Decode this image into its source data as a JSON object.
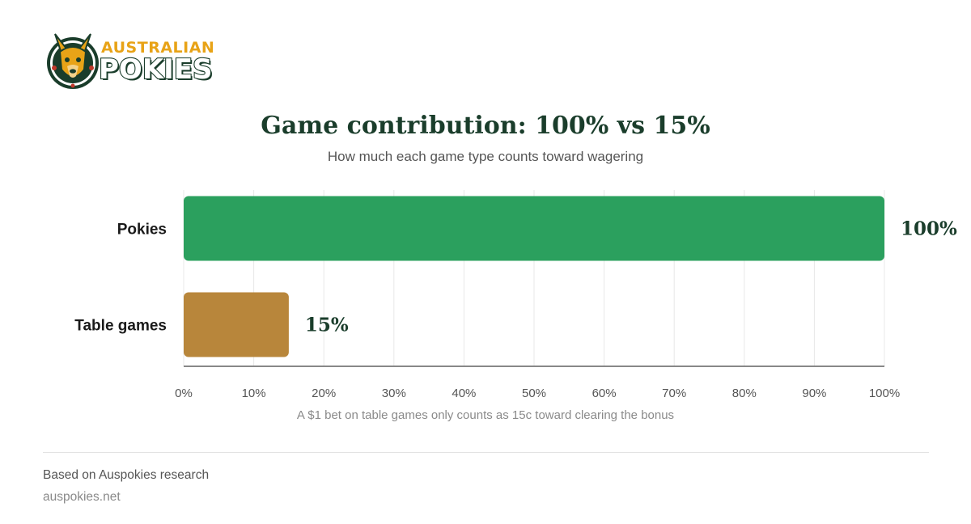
{
  "brand": {
    "name_top": "AUSTRALIAN",
    "name_bottom": "POKIES",
    "logo_icon": "kangaroo-head-icon",
    "colors": {
      "gold": "#e8a317",
      "dark_green": "#1a3d2b",
      "red": "#c0392b"
    }
  },
  "chart_data": {
    "type": "bar",
    "orientation": "horizontal",
    "title": "Game contribution: 100% vs 15%",
    "subtitle": "How much each game type counts toward wagering",
    "categories": [
      "Pokies",
      "Table games"
    ],
    "values": [
      100,
      15
    ],
    "value_labels": [
      "100%",
      "15%"
    ],
    "colors": [
      "#2ba05e",
      "#b8863b"
    ],
    "xlim": [
      0,
      100
    ],
    "x_ticks": [
      0,
      10,
      20,
      30,
      40,
      50,
      60,
      70,
      80,
      90,
      100
    ],
    "x_tick_labels": [
      "0%",
      "10%",
      "20%",
      "30%",
      "40%",
      "50%",
      "60%",
      "70%",
      "80%",
      "90%",
      "100%"
    ],
    "grid": true,
    "legend": "none",
    "footnote": "A $1 bet on table games only counts as 15c toward clearing the bonus"
  },
  "footer": {
    "source": "Based on Auspokies research",
    "site": "auspokies.net"
  }
}
